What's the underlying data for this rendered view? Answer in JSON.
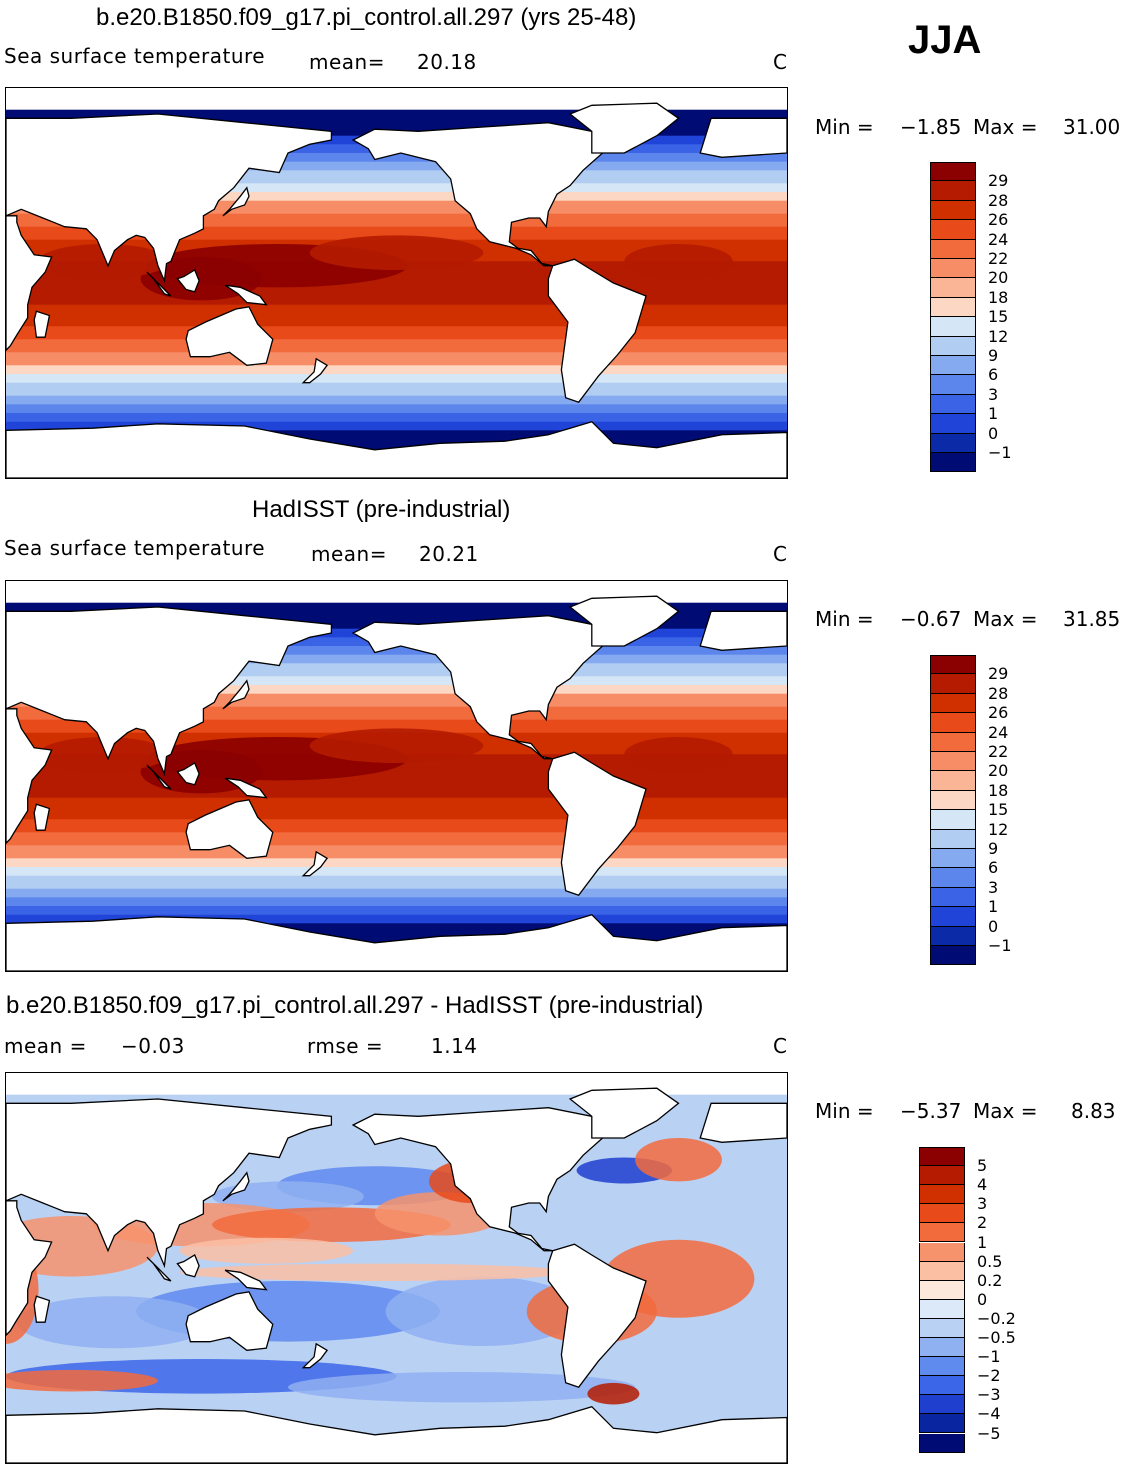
{
  "season": "JJA",
  "panels": [
    {
      "title": "b.e20.B1850.f09_g17.pi_control.all.297 (yrs 25-48)",
      "left_text": "Sea surface temperature",
      "stat1_label": "mean=",
      "stat1_value": "20.18",
      "stat2_label": "",
      "stat2_value": "",
      "units": "C",
      "min_label": "Min =",
      "min_value": "−1.85",
      "max_label": "Max =",
      "max_value": "31.00",
      "kind": "sst",
      "colorbar_labels": [
        "29",
        "28",
        "26",
        "24",
        "22",
        "20",
        "18",
        "15",
        "12",
        "9",
        "6",
        "3",
        "1",
        "0",
        "−1"
      ],
      "colorbar_colors": [
        "#8b0000",
        "#b41b00",
        "#d03000",
        "#e84a1a",
        "#f26b3d",
        "#f68d66",
        "#fab496",
        "#fcd8c4",
        "#d5e6f6",
        "#b2cdf2",
        "#86aaf0",
        "#5c86ec",
        "#3b63e6",
        "#2144d8",
        "#0a2aa8",
        "#000b73"
      ]
    },
    {
      "title": "HadISST (pre-industrial)",
      "left_text": "Sea surface temperature",
      "stat1_label": "mean=",
      "stat1_value": "20.21",
      "stat2_label": "",
      "stat2_value": "",
      "units": "C",
      "min_label": "Min =",
      "min_value": "−0.67",
      "max_label": "Max =",
      "max_value": "31.85",
      "kind": "sst",
      "colorbar_labels": [
        "29",
        "28",
        "26",
        "24",
        "22",
        "20",
        "18",
        "15",
        "12",
        "9",
        "6",
        "3",
        "1",
        "0",
        "−1"
      ],
      "colorbar_colors": [
        "#8b0000",
        "#b41b00",
        "#d03000",
        "#e84a1a",
        "#f26b3d",
        "#f68d66",
        "#fab496",
        "#fcd8c4",
        "#d5e6f6",
        "#b2cdf2",
        "#86aaf0",
        "#5c86ec",
        "#3b63e6",
        "#2144d8",
        "#0a2aa8",
        "#000b73"
      ]
    },
    {
      "title": "b.e20.B1850.f09_g17.pi_control.all.297 - HadISST (pre-industrial)",
      "left_text": "mean =",
      "stat1_label": "",
      "stat1_value": "−0.03",
      "stat2_label": "rmse =",
      "stat2_value": "1.14",
      "units": "C",
      "min_label": "Min =",
      "min_value": "−5.37",
      "max_label": "Max =",
      "max_value": "8.83",
      "kind": "diff",
      "colorbar_labels": [
        "5",
        "4",
        "3",
        "2",
        "1",
        "0.5",
        "0.2",
        "0",
        "−0.2",
        "−0.5",
        "−1",
        "−2",
        "−3",
        "−4",
        "−5"
      ],
      "colorbar_colors": [
        "#8b0000",
        "#b41b00",
        "#d03000",
        "#e84a1a",
        "#f26b3d",
        "#f7936c",
        "#fbc0a4",
        "#fde8dc",
        "#dce9f8",
        "#b9d1f3",
        "#8fb0f1",
        "#5f8aee",
        "#3c66e8",
        "#1f40cf",
        "#0a25a0",
        "#000b73"
      ]
    }
  ]
}
